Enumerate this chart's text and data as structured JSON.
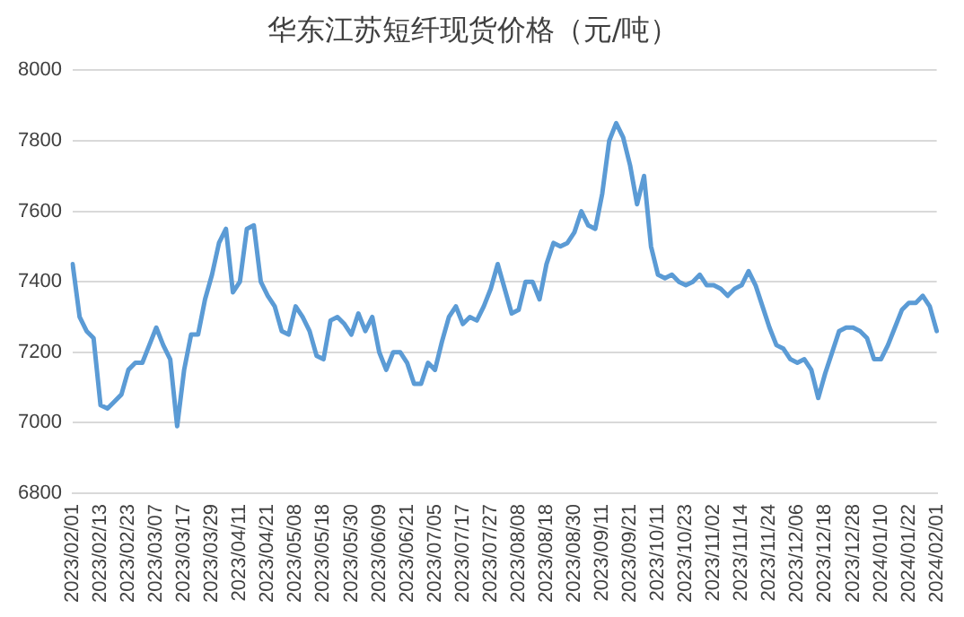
{
  "chart_data": {
    "type": "line",
    "title": "华东江苏短纤现货价格（元/吨）",
    "categories": [
      "2023/02/01",
      null,
      null,
      null,
      "2023/02/13",
      null,
      null,
      null,
      "2023/02/23",
      null,
      null,
      null,
      "2023/03/07",
      null,
      null,
      null,
      "2023/03/17",
      null,
      null,
      null,
      "2023/03/29",
      null,
      null,
      null,
      "2023/04/11",
      null,
      null,
      null,
      "2023/04/21",
      null,
      null,
      null,
      "2023/05/08",
      null,
      null,
      null,
      "2023/05/18",
      null,
      null,
      null,
      "2023/05/30",
      null,
      null,
      null,
      "2023/06/09",
      null,
      null,
      null,
      "2023/06/21",
      null,
      null,
      null,
      "2023/07/05",
      null,
      null,
      null,
      "2023/07/17",
      null,
      null,
      null,
      "2023/07/27",
      null,
      null,
      null,
      "2023/08/08",
      null,
      null,
      null,
      "2023/08/18",
      null,
      null,
      null,
      "2023/08/30",
      null,
      null,
      null,
      "2023/09/11",
      null,
      null,
      null,
      "2023/09/21",
      null,
      null,
      null,
      "2023/10/11",
      null,
      null,
      null,
      "2023/10/23",
      null,
      null,
      null,
      "2023/11/02",
      null,
      null,
      null,
      "2023/11/14",
      null,
      null,
      null,
      "2023/11/24",
      null,
      null,
      null,
      "2023/12/06",
      null,
      null,
      null,
      "2023/12/18",
      null,
      null,
      null,
      "2023/12/28",
      null,
      null,
      null,
      "2024/01/10",
      null,
      null,
      null,
      "2024/01/22",
      null,
      null,
      null,
      "2024/02/01"
    ],
    "series": [
      {
        "color": "#5b9bd5",
        "values": [
          7450,
          7300,
          7260,
          7240,
          7050,
          7040,
          7060,
          7080,
          7150,
          7170,
          7170,
          7220,
          7270,
          7220,
          7180,
          6990,
          7150,
          7250,
          7250,
          7350,
          7420,
          7510,
          7550,
          7370,
          7400,
          7550,
          7560,
          7400,
          7360,
          7330,
          7260,
          7250,
          7330,
          7300,
          7260,
          7190,
          7180,
          7290,
          7300,
          7280,
          7250,
          7310,
          7260,
          7300,
          7200,
          7150,
          7200,
          7200,
          7170,
          7110,
          7110,
          7170,
          7150,
          7230,
          7300,
          7330,
          7280,
          7300,
          7290,
          7330,
          7380,
          7450,
          7380,
          7310,
          7320,
          7400,
          7400,
          7350,
          7450,
          7510,
          7500,
          7510,
          7540,
          7600,
          7560,
          7550,
          7650,
          7800,
          7850,
          7810,
          7730,
          7620,
          7700,
          7500,
          7420,
          7410,
          7420,
          7400,
          7390,
          7400,
          7420,
          7390,
          7390,
          7380,
          7360,
          7380,
          7390,
          7430,
          7390,
          7330,
          7270,
          7220,
          7210,
          7180,
          7170,
          7180,
          7150,
          7070,
          7140,
          7200,
          7260,
          7270,
          7270,
          7260,
          7240,
          7180,
          7180,
          7220,
          7270,
          7320,
          7340,
          7340,
          7360,
          7330,
          7260
        ]
      }
    ],
    "ylim": [
      6800,
      8000
    ],
    "yticks": [
      6800,
      7000,
      7200,
      7400,
      7600,
      7800,
      8000
    ],
    "grid": "y",
    "legend": false,
    "marker": "none",
    "line_style": "solid"
  }
}
